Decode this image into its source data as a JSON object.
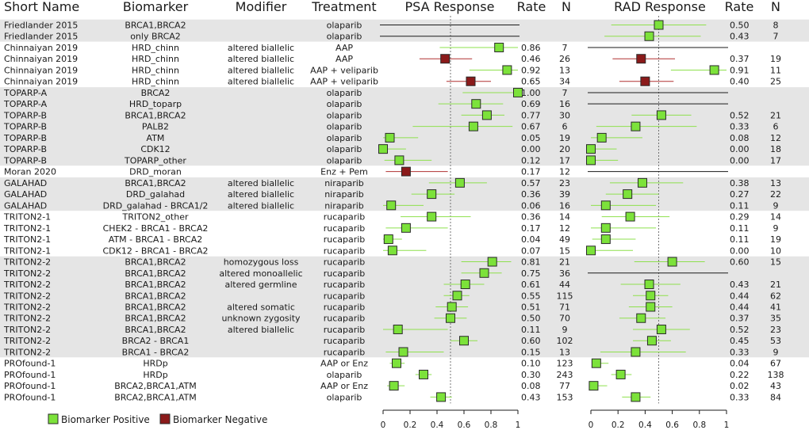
{
  "chart_data": {
    "type": "forest",
    "headers": {
      "short_name": "Short Name",
      "biomarker": "Biomarker",
      "modifier": "Modifier",
      "treatment": "Treatment",
      "psa_title": "PSA Response",
      "psa_rate": "Rate",
      "psa_n": "N",
      "rad_title": "RAD Response",
      "rad_rate": "Rate",
      "rad_n": "N"
    },
    "x_ticks": [
      "0",
      "0.2",
      "0.4",
      "0.6",
      "0.8",
      "1"
    ],
    "xlim": [
      0,
      1
    ],
    "psa_reference_line": 0.5,
    "rad_reference_line": 0.5,
    "colors": {
      "positive": "#7ce23a",
      "negative": "#8b1a1a",
      "ci_positive": "#8ee04d",
      "ci_negative": "#b03030",
      "band": "#e5e5e5"
    },
    "legend": {
      "positive": "Biomarker Positive",
      "negative": "Biomarker Negative"
    },
    "groups": [
      {
        "start": 0,
        "end": 1,
        "shaded": true
      },
      {
        "start": 2,
        "end": 5,
        "shaded": false
      },
      {
        "start": 6,
        "end": 12,
        "shaded": true
      },
      {
        "start": 13,
        "end": 13,
        "shaded": false
      },
      {
        "start": 14,
        "end": 16,
        "shaded": true
      },
      {
        "start": 17,
        "end": 20,
        "shaded": false
      },
      {
        "start": 21,
        "end": 29,
        "shaded": true
      },
      {
        "start": 30,
        "end": 33,
        "shaded": false
      }
    ],
    "rows": [
      {
        "study": "Friedlander 2015",
        "biomarker": "BRCA1,BRCA2",
        "modifier": "",
        "treatment": "olaparib",
        "positive": true,
        "psa_rate": null,
        "psa_rate_label": "",
        "psa_n": "",
        "psa_lo": null,
        "psa_hi": null,
        "psa_line": true,
        "rad_rate": 0.5,
        "rad_rate_label": "0.50",
        "rad_n": "8",
        "rad_lo": 0.15,
        "rad_hi": 0.85,
        "rad_line": false
      },
      {
        "study": "Friedlander 2015",
        "biomarker": "only BRCA2",
        "modifier": "",
        "treatment": "olaparib",
        "positive": true,
        "psa_rate": null,
        "psa_rate_label": "",
        "psa_n": "",
        "psa_lo": null,
        "psa_hi": null,
        "psa_line": true,
        "rad_rate": 0.43,
        "rad_rate_label": "0.43",
        "rad_n": "7",
        "rad_lo": 0.1,
        "rad_hi": 0.81,
        "rad_line": false
      },
      {
        "study": "Chinnaiyan 2019",
        "biomarker": "HRD_chinn",
        "modifier": "altered biallelic",
        "treatment": "AAP",
        "positive": true,
        "psa_rate": 0.86,
        "psa_rate_label": "0.86",
        "psa_n": "7",
        "psa_lo": 0.42,
        "psa_hi": 1.0,
        "psa_line": false,
        "rad_rate": null,
        "rad_rate_label": "",
        "rad_n": "",
        "rad_lo": null,
        "rad_hi": null,
        "rad_line": true
      },
      {
        "study": "Chinnaiyan 2019",
        "biomarker": "HRD_chinn",
        "modifier": "altered biallelic",
        "treatment": "AAP",
        "positive": false,
        "psa_rate": 0.46,
        "psa_rate_label": "0.46",
        "psa_n": "26",
        "psa_lo": 0.27,
        "psa_hi": 0.66,
        "psa_line": false,
        "rad_rate": 0.37,
        "rad_rate_label": "0.37",
        "rad_n": "19",
        "rad_lo": 0.16,
        "rad_hi": 0.62,
        "rad_line": false
      },
      {
        "study": "Chinnaiyan 2019",
        "biomarker": "HRD_chinn",
        "modifier": "altered biallelic",
        "treatment": "AAP + veliparib",
        "positive": true,
        "psa_rate": 0.92,
        "psa_rate_label": "0.92",
        "psa_n": "13",
        "psa_lo": 0.64,
        "psa_hi": 1.0,
        "psa_line": false,
        "rad_rate": 0.91,
        "rad_rate_label": "0.91",
        "rad_n": "11",
        "rad_lo": 0.59,
        "rad_hi": 1.0,
        "rad_line": false
      },
      {
        "study": "Chinnaiyan 2019",
        "biomarker": "HRD_chinn",
        "modifier": "altered biallelic",
        "treatment": "AAP + veliparib",
        "positive": false,
        "psa_rate": 0.65,
        "psa_rate_label": "0.65",
        "psa_n": "34",
        "psa_lo": 0.47,
        "psa_hi": 0.8,
        "psa_line": false,
        "rad_rate": 0.4,
        "rad_rate_label": "0.40",
        "rad_n": "25",
        "rad_lo": 0.21,
        "rad_hi": 0.61,
        "rad_line": false
      },
      {
        "study": "TOPARP-A",
        "biomarker": "BRCA2",
        "modifier": "",
        "treatment": "olaparib",
        "positive": true,
        "psa_rate": 1.0,
        "psa_rate_label": "1.00",
        "psa_n": "7",
        "psa_lo": 0.59,
        "psa_hi": 1.0,
        "psa_line": false,
        "rad_rate": null,
        "rad_rate_label": "",
        "rad_n": "",
        "rad_lo": null,
        "rad_hi": null,
        "rad_line": true
      },
      {
        "study": "TOPARP-A",
        "biomarker": "HRD_toparp",
        "modifier": "",
        "treatment": "olaparib",
        "positive": true,
        "psa_rate": 0.69,
        "psa_rate_label": "0.69",
        "psa_n": "16",
        "psa_lo": 0.41,
        "psa_hi": 0.89,
        "psa_line": false,
        "rad_rate": null,
        "rad_rate_label": "",
        "rad_n": "",
        "rad_lo": null,
        "rad_hi": null,
        "rad_line": true
      },
      {
        "study": "TOPARP-B",
        "biomarker": "BRCA1,BRCA2",
        "modifier": "",
        "treatment": "olaparib",
        "positive": true,
        "psa_rate": 0.77,
        "psa_rate_label": "0.77",
        "psa_n": "30",
        "psa_lo": 0.58,
        "psa_hi": 0.9,
        "psa_line": false,
        "rad_rate": 0.52,
        "rad_rate_label": "0.52",
        "rad_n": "21",
        "rad_lo": 0.3,
        "rad_hi": 0.74,
        "rad_line": false
      },
      {
        "study": "TOPARP-B",
        "biomarker": "PALB2",
        "modifier": "",
        "treatment": "olaparib",
        "positive": true,
        "psa_rate": 0.67,
        "psa_rate_label": "0.67",
        "psa_n": "6",
        "psa_lo": 0.22,
        "psa_hi": 0.96,
        "psa_line": false,
        "rad_rate": 0.33,
        "rad_rate_label": "0.33",
        "rad_n": "6",
        "rad_lo": 0.04,
        "rad_hi": 0.78,
        "rad_line": false
      },
      {
        "study": "TOPARP-B",
        "biomarker": "ATM",
        "modifier": "",
        "treatment": "olaparib",
        "positive": true,
        "psa_rate": 0.05,
        "psa_rate_label": "0.05",
        "psa_n": "19",
        "psa_lo": 0.0,
        "psa_hi": 0.26,
        "psa_line": false,
        "rad_rate": 0.08,
        "rad_rate_label": "0.08",
        "rad_n": "12",
        "rad_lo": 0.0,
        "rad_hi": 0.38,
        "rad_line": false
      },
      {
        "study": "TOPARP-B",
        "biomarker": "CDK12",
        "modifier": "",
        "treatment": "olaparib",
        "positive": true,
        "psa_rate": 0.0,
        "psa_rate_label": "0.00",
        "psa_n": "20",
        "psa_lo": 0.0,
        "psa_hi": 0.17,
        "psa_line": false,
        "rad_rate": 0.0,
        "rad_rate_label": "0.00",
        "rad_n": "18",
        "rad_lo": 0.0,
        "rad_hi": 0.19,
        "rad_line": false
      },
      {
        "study": "TOPARP-B",
        "biomarker": "TOPARP_other",
        "modifier": "",
        "treatment": "olaparib",
        "positive": true,
        "psa_rate": 0.12,
        "psa_rate_label": "0.12",
        "psa_n": "17",
        "psa_lo": 0.01,
        "psa_hi": 0.36,
        "psa_line": false,
        "rad_rate": 0.0,
        "rad_rate_label": "0.00",
        "rad_n": "17",
        "rad_lo": 0.0,
        "rad_hi": 0.2,
        "rad_line": false
      },
      {
        "study": "Moran 2020",
        "biomarker": "DRD_moran",
        "modifier": "",
        "treatment": "Enz + Pem",
        "positive": false,
        "psa_rate": 0.17,
        "psa_rate_label": "0.17",
        "psa_n": "12",
        "psa_lo": 0.02,
        "psa_hi": 0.48,
        "psa_line": false,
        "rad_rate": null,
        "rad_rate_label": "",
        "rad_n": "",
        "rad_lo": null,
        "rad_hi": null,
        "rad_line": true
      },
      {
        "study": "GALAHAD",
        "biomarker": "BRCA1,BRCA2",
        "modifier": "altered biallelic",
        "treatment": "niraparib",
        "positive": true,
        "psa_rate": 0.57,
        "psa_rate_label": "0.57",
        "psa_n": "23",
        "psa_lo": 0.34,
        "psa_hi": 0.77,
        "psa_line": false,
        "rad_rate": 0.38,
        "rad_rate_label": "0.38",
        "rad_n": "13",
        "rad_lo": 0.14,
        "rad_hi": 0.68,
        "rad_line": false
      },
      {
        "study": "GALAHAD",
        "biomarker": "DRD_galahad",
        "modifier": "altered biallelic",
        "treatment": "niraparib",
        "positive": true,
        "psa_rate": 0.36,
        "psa_rate_label": "0.36",
        "psa_n": "39",
        "psa_lo": 0.21,
        "psa_hi": 0.53,
        "psa_line": false,
        "rad_rate": 0.27,
        "rad_rate_label": "0.27",
        "rad_n": "22",
        "rad_lo": 0.11,
        "rad_hi": 0.5,
        "rad_line": false
      },
      {
        "study": "GALAHAD",
        "biomarker": "DRD_galahad - BRCA1/2",
        "modifier": "altered biallelic",
        "treatment": "niraparib",
        "positive": true,
        "psa_rate": 0.06,
        "psa_rate_label": "0.06",
        "psa_n": "16",
        "psa_lo": 0.0,
        "psa_hi": 0.3,
        "psa_line": false,
        "rad_rate": 0.11,
        "rad_rate_label": "0.11",
        "rad_n": "9",
        "rad_lo": 0.0,
        "rad_hi": 0.48,
        "rad_line": false
      },
      {
        "study": "TRITON2-1",
        "biomarker": "TRITON2_other",
        "modifier": "",
        "treatment": "rucaparib",
        "positive": true,
        "psa_rate": 0.36,
        "psa_rate_label": "0.36",
        "psa_n": "14",
        "psa_lo": 0.13,
        "psa_hi": 0.65,
        "psa_line": false,
        "rad_rate": 0.29,
        "rad_rate_label": "0.29",
        "rad_n": "14",
        "rad_lo": 0.08,
        "rad_hi": 0.58,
        "rad_line": false
      },
      {
        "study": "TRITON2-1",
        "biomarker": "CHEK2 - BRCA1 - BRCA2",
        "modifier": "",
        "treatment": "rucaparib",
        "positive": true,
        "psa_rate": 0.17,
        "psa_rate_label": "0.17",
        "psa_n": "12",
        "psa_lo": 0.02,
        "psa_hi": 0.48,
        "psa_line": false,
        "rad_rate": 0.11,
        "rad_rate_label": "0.11",
        "rad_n": "9",
        "rad_lo": 0.0,
        "rad_hi": 0.48,
        "rad_line": false
      },
      {
        "study": "TRITON2-1",
        "biomarker": "ATM - BRCA1 - BRCA2",
        "modifier": "",
        "treatment": "rucaparib",
        "positive": true,
        "psa_rate": 0.04,
        "psa_rate_label": "0.04",
        "psa_n": "49",
        "psa_lo": 0.0,
        "psa_hi": 0.14,
        "psa_line": false,
        "rad_rate": 0.11,
        "rad_rate_label": "0.11",
        "rad_n": "19",
        "rad_lo": 0.01,
        "rad_hi": 0.33,
        "rad_line": false
      },
      {
        "study": "TRITON2-1",
        "biomarker": "CDK12 - BRCA1 - BRCA2",
        "modifier": "",
        "treatment": "rucaparib",
        "positive": true,
        "psa_rate": 0.07,
        "psa_rate_label": "0.07",
        "psa_n": "15",
        "psa_lo": 0.0,
        "psa_hi": 0.32,
        "psa_line": false,
        "rad_rate": 0.0,
        "rad_rate_label": "0.00",
        "rad_n": "10",
        "rad_lo": 0.0,
        "rad_hi": 0.31,
        "rad_line": false
      },
      {
        "study": "TRITON2-2",
        "biomarker": "BRCA1,BRCA2",
        "modifier": "homozygous loss",
        "treatment": "rucaparib",
        "positive": true,
        "psa_rate": 0.81,
        "psa_rate_label": "0.81",
        "psa_n": "21",
        "psa_lo": 0.58,
        "psa_hi": 0.95,
        "psa_line": false,
        "rad_rate": 0.6,
        "rad_rate_label": "0.60",
        "rad_n": "15",
        "rad_lo": 0.32,
        "rad_hi": 0.84,
        "rad_line": false
      },
      {
        "study": "TRITON2-2",
        "biomarker": "BRCA1,BRCA2",
        "modifier": "altered monoallelic",
        "treatment": "rucaparib",
        "positive": true,
        "psa_rate": 0.75,
        "psa_rate_label": "0.75",
        "psa_n": "36",
        "psa_lo": 0.58,
        "psa_hi": 0.88,
        "psa_line": false,
        "rad_rate": null,
        "rad_rate_label": "",
        "rad_n": "",
        "rad_lo": null,
        "rad_hi": null,
        "rad_line": true
      },
      {
        "study": "TRITON2-2",
        "biomarker": "BRCA1,BRCA2",
        "modifier": "altered germline",
        "treatment": "rucaparib",
        "positive": true,
        "psa_rate": 0.61,
        "psa_rate_label": "0.61",
        "psa_n": "44",
        "psa_lo": 0.45,
        "psa_hi": 0.75,
        "psa_line": false,
        "rad_rate": 0.43,
        "rad_rate_label": "0.43",
        "rad_n": "21",
        "rad_lo": 0.22,
        "rad_hi": 0.66,
        "rad_line": false
      },
      {
        "study": "TRITON2-2",
        "biomarker": "BRCA1,BRCA2",
        "modifier": "",
        "treatment": "rucaparib",
        "positive": true,
        "psa_rate": 0.55,
        "psa_rate_label": "0.55",
        "psa_n": "115",
        "psa_lo": 0.45,
        "psa_hi": 0.64,
        "psa_line": false,
        "rad_rate": 0.44,
        "rad_rate_label": "0.44",
        "rad_n": "62",
        "rad_lo": 0.31,
        "rad_hi": 0.57,
        "rad_line": false
      },
      {
        "study": "TRITON2-2",
        "biomarker": "BRCA1,BRCA2",
        "modifier": "altered somatic",
        "treatment": "rucaparib",
        "positive": true,
        "psa_rate": 0.51,
        "psa_rate_label": "0.51",
        "psa_n": "71",
        "psa_lo": 0.39,
        "psa_hi": 0.63,
        "psa_line": false,
        "rad_rate": 0.44,
        "rad_rate_label": "0.44",
        "rad_n": "41",
        "rad_lo": 0.28,
        "rad_hi": 0.6,
        "rad_line": false
      },
      {
        "study": "TRITON2-2",
        "biomarker": "BRCA1,BRCA2",
        "modifier": "unknown zygosity",
        "treatment": "rucaparib",
        "positive": true,
        "psa_rate": 0.5,
        "psa_rate_label": "0.50",
        "psa_n": "70",
        "psa_lo": 0.38,
        "psa_hi": 0.62,
        "psa_line": false,
        "rad_rate": 0.37,
        "rad_rate_label": "0.37",
        "rad_n": "35",
        "rad_lo": 0.21,
        "rad_hi": 0.55,
        "rad_line": false
      },
      {
        "study": "TRITON2-2",
        "biomarker": "BRCA1,BRCA2",
        "modifier": "altered biallelic",
        "treatment": "rucaparib",
        "positive": true,
        "psa_rate": 0.11,
        "psa_rate_label": "0.11",
        "psa_n": "9",
        "psa_lo": 0.0,
        "psa_hi": 0.48,
        "psa_line": false,
        "rad_rate": 0.52,
        "rad_rate_label": "0.52",
        "rad_n": "23",
        "rad_lo": 0.31,
        "rad_hi": 0.73,
        "rad_line": false
      },
      {
        "study": "TRITON2-2",
        "biomarker": "BRCA2 - BRCA1",
        "modifier": "",
        "treatment": "rucaparib",
        "positive": true,
        "psa_rate": 0.6,
        "psa_rate_label": "0.60",
        "psa_n": "102",
        "psa_lo": 0.5,
        "psa_hi": 0.7,
        "psa_line": false,
        "rad_rate": 0.45,
        "rad_rate_label": "0.45",
        "rad_n": "53",
        "rad_lo": 0.31,
        "rad_hi": 0.59,
        "rad_line": false
      },
      {
        "study": "TRITON2-2",
        "biomarker": "BRCA1 - BRCA2",
        "modifier": "",
        "treatment": "rucaparib",
        "positive": true,
        "psa_rate": 0.15,
        "psa_rate_label": "0.15",
        "psa_n": "13",
        "psa_lo": 0.02,
        "psa_hi": 0.45,
        "psa_line": false,
        "rad_rate": 0.33,
        "rad_rate_label": "0.33",
        "rad_n": "9",
        "rad_lo": 0.07,
        "rad_hi": 0.7,
        "rad_line": false
      },
      {
        "study": "PROfound-1",
        "biomarker": "HRDp",
        "modifier": "",
        "treatment": "AAP or Enz",
        "positive": true,
        "psa_rate": 0.1,
        "psa_rate_label": "0.10",
        "psa_n": "123",
        "psa_lo": 0.05,
        "psa_hi": 0.16,
        "psa_line": false,
        "rad_rate": 0.04,
        "rad_rate_label": "0.04",
        "rad_n": "67",
        "rad_lo": 0.01,
        "rad_hi": 0.13,
        "rad_line": false
      },
      {
        "study": "PROfound-1",
        "biomarker": "HRDp",
        "modifier": "",
        "treatment": "olaparib",
        "positive": true,
        "psa_rate": 0.3,
        "psa_rate_label": "0.30",
        "psa_n": "243",
        "psa_lo": 0.24,
        "psa_hi": 0.36,
        "psa_line": false,
        "rad_rate": 0.22,
        "rad_rate_label": "0.22",
        "rad_n": "138",
        "rad_lo": 0.15,
        "rad_hi": 0.3,
        "rad_line": false
      },
      {
        "study": "PROfound-1",
        "biomarker": "BRCA2,BRCA1,ATM",
        "modifier": "",
        "treatment": "AAP or Enz",
        "positive": true,
        "psa_rate": 0.08,
        "psa_rate_label": "0.08",
        "psa_n": "77",
        "psa_lo": 0.03,
        "psa_hi": 0.16,
        "psa_line": false,
        "rad_rate": 0.02,
        "rad_rate_label": "0.02",
        "rad_n": "43",
        "rad_lo": 0.0,
        "rad_hi": 0.12,
        "rad_line": false
      },
      {
        "study": "PROfound-1",
        "biomarker": "BRCA2,BRCA1,ATM",
        "modifier": "",
        "treatment": "olaparib",
        "positive": true,
        "psa_rate": 0.43,
        "psa_rate_label": "0.43",
        "psa_n": "153",
        "psa_lo": 0.35,
        "psa_hi": 0.51,
        "psa_line": false,
        "rad_rate": 0.33,
        "rad_rate_label": "0.33",
        "rad_n": "84",
        "rad_lo": 0.23,
        "rad_hi": 0.44,
        "rad_line": false
      }
    ]
  }
}
